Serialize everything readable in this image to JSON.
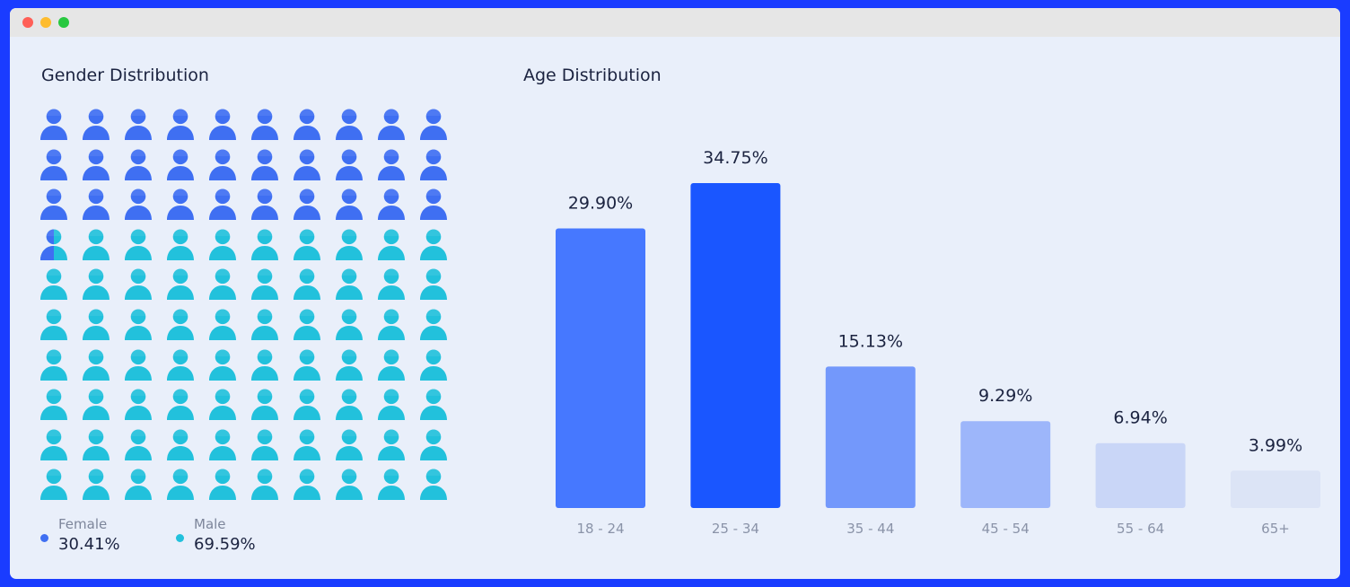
{
  "window": {
    "controls": [
      "close",
      "minimize",
      "zoom"
    ]
  },
  "gender": {
    "title": "Gender Distribution",
    "legend": [
      {
        "label": "Female",
        "value": "30.41%",
        "color": "#3f6ff2"
      },
      {
        "label": "Male",
        "value": "69.59%",
        "color": "#22c1dc"
      }
    ]
  },
  "age": {
    "title": "Age Distribution"
  },
  "chart_data": [
    {
      "type": "pictograph",
      "title": "Gender Distribution",
      "total_icons": 100,
      "series": [
        {
          "name": "Female",
          "value": 30.41,
          "color": "#3f6ff2"
        },
        {
          "name": "Male",
          "value": 69.59,
          "color": "#22c1dc"
        }
      ]
    },
    {
      "type": "bar",
      "title": "Age Distribution",
      "categories": [
        "18 - 24",
        "25 - 34",
        "35 - 44",
        "45 - 54",
        "55 - 64",
        "65+"
      ],
      "values": [
        29.9,
        34.75,
        15.13,
        9.29,
        6.94,
        3.99
      ],
      "labels": [
        "29.90%",
        "34.75%",
        "15.13%",
        "9.29%",
        "6.94%",
        "3.99%"
      ],
      "colors": [
        "#4678ff",
        "#1a56ff",
        "#7398fb",
        "#9db6fa",
        "#c9d6f7",
        "#dce4f6"
      ],
      "grid": false
    }
  ]
}
